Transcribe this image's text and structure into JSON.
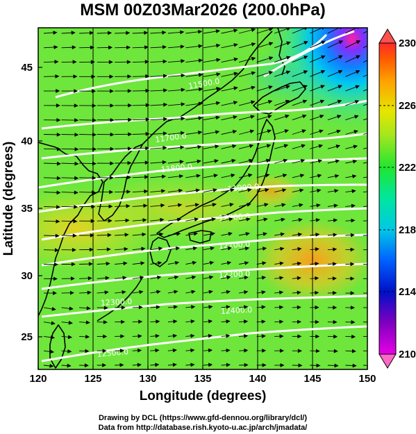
{
  "title": "MSM 00Z03Mar2026 (200.0hPa)",
  "x_axis": {
    "label": "Longitude (degrees)",
    "ticks": [
      "120",
      "125",
      "130",
      "135",
      "140",
      "145",
      "150"
    ]
  },
  "y_axis": {
    "label": "Latitude (degrees)",
    "ticks": [
      "25",
      "30",
      "35",
      "40",
      "45"
    ]
  },
  "colorbar": {
    "ticks": [
      "210",
      "214",
      "218",
      "222",
      "226",
      "230"
    ],
    "range": [
      210,
      230
    ],
    "colors": [
      "#e600e6",
      "#8000c0",
      "#0010c8",
      "#0060ff",
      "#00c8e6",
      "#00e6a0",
      "#20e630",
      "#a0e61e",
      "#e6e600",
      "#ffa000",
      "#ff5a00",
      "#ff2a2a"
    ]
  },
  "contour_labels": [
    "11500.0",
    "11700.0",
    "11800.0",
    "11900.0",
    "12000.0",
    "12100.0",
    "12200.0",
    "12300.0",
    "12400.0",
    "12500.0"
  ],
  "credits": {
    "line1": "Drawing by DCL (https://www.gfd-dennou.org/library/dcl/)",
    "line2": "Data from http://database.rish.kyoto-u.ac.jp/arch/jmadata/"
  },
  "map": {
    "lon_range": [
      120,
      150
    ],
    "lat_range": [
      22.6,
      47.9
    ],
    "field_colors": {
      "base": "#6ee63c",
      "warm_core": "#ffa020",
      "warm_band": "#e6e41e",
      "cold_corner": "#e600e6",
      "cool_patch": "#00c8e6"
    }
  }
}
